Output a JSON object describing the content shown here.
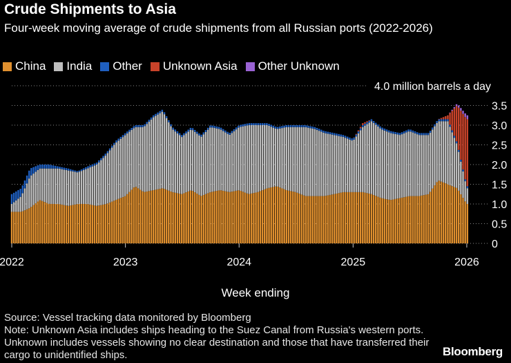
{
  "header": {
    "title": "Crude Shipments to Asia",
    "subtitle": "Four-week moving average of crude shipments from all Russian ports (2022-2026)"
  },
  "legend": [
    {
      "label": "China",
      "color": "#e0902f"
    },
    {
      "label": "India",
      "color": "#bdbdbd"
    },
    {
      "label": "Other",
      "color": "#1f5fbf"
    },
    {
      "label": "Unknown Asia",
      "color": "#c8432a"
    },
    {
      "label": "Other Unknown",
      "color": "#9a63d4"
    }
  ],
  "footer": {
    "source": "Source: Vessel tracking data monitored by Bloomberg",
    "note": "Note: Unknown Asia includes ships heading to the Suez Canal from Russia's western ports. Unknown includes vessels showing no clear destination and those that have transferred their cargo to unidentified ships.",
    "logo": "Bloomberg"
  },
  "chart_data": {
    "type": "bar",
    "stacked": true,
    "title": "Crude Shipments to Asia",
    "subtitle": "Four-week moving average of crude shipments from all Russian ports (2022-2026)",
    "xlabel": "Week ending",
    "ylabel": "",
    "y_unit_label": "4.0 million barrels a day",
    "ylim": [
      0,
      4.0
    ],
    "yticks": [
      "0",
      "0.5",
      "1.0",
      "1.5",
      "2.0",
      "2.5",
      "3.0",
      "3.5",
      "4.0"
    ],
    "xticks": [
      "2022",
      "2023",
      "2024",
      "2025",
      "2026"
    ],
    "xlim": [
      "2022-01-01",
      "2026-01-10"
    ],
    "grid": "horizontal dotted",
    "legend_position": "top-left",
    "series_order": [
      "China",
      "India",
      "Other",
      "Unknown Asia",
      "Other Unknown"
    ],
    "colors": {
      "China": "#e0902f",
      "India": "#bdbdbd",
      "Other": "#1f5fbf",
      "Unknown Asia": "#c8432a",
      "Other Unknown": "#9a63d4"
    },
    "approximate_points": {
      "x": [
        "2022-01-01",
        "2022-02-01",
        "2022-03-01",
        "2022-04-01",
        "2022-05-01",
        "2022-06-01",
        "2022-07-01",
        "2022-08-01",
        "2022-09-01",
        "2022-10-01",
        "2022-11-01",
        "2022-12-01",
        "2023-01-01",
        "2023-02-01",
        "2023-03-01",
        "2023-04-01",
        "2023-05-01",
        "2023-06-01",
        "2023-07-01",
        "2023-08-01",
        "2023-09-01",
        "2023-10-01",
        "2023-11-01",
        "2023-12-01",
        "2024-01-01",
        "2024-02-01",
        "2024-03-01",
        "2024-04-01",
        "2024-05-01",
        "2024-06-01",
        "2024-07-01",
        "2024-08-01",
        "2024-09-01",
        "2024-10-01",
        "2024-11-01",
        "2024-12-01",
        "2025-01-01",
        "2025-02-01",
        "2025-03-01",
        "2025-04-01",
        "2025-05-01",
        "2025-06-01",
        "2025-07-01",
        "2025-08-01",
        "2025-09-01",
        "2025-10-01",
        "2025-11-01",
        "2025-12-01",
        "2026-01-01"
      ],
      "series": [
        {
          "name": "China",
          "values": [
            0.8,
            0.8,
            0.9,
            1.1,
            1.0,
            1.0,
            0.95,
            1.0,
            1.0,
            0.95,
            1.0,
            1.1,
            1.2,
            1.45,
            1.3,
            1.35,
            1.4,
            1.3,
            1.25,
            1.35,
            1.2,
            1.3,
            1.35,
            1.3,
            1.35,
            1.25,
            1.3,
            1.4,
            1.45,
            1.35,
            1.3,
            1.2,
            1.2,
            1.2,
            1.25,
            1.3,
            1.3,
            1.3,
            1.25,
            1.15,
            1.1,
            1.15,
            1.2,
            1.2,
            1.25,
            1.6,
            1.5,
            1.4,
            1.0
          ]
        },
        {
          "name": "India",
          "values": [
            0.2,
            0.4,
            0.8,
            0.8,
            0.9,
            0.9,
            0.9,
            0.8,
            0.9,
            1.05,
            1.25,
            1.45,
            1.55,
            1.5,
            1.65,
            1.85,
            1.95,
            1.6,
            1.45,
            1.55,
            1.5,
            1.65,
            1.55,
            1.45,
            1.6,
            1.75,
            1.7,
            1.6,
            1.45,
            1.6,
            1.65,
            1.75,
            1.7,
            1.6,
            1.5,
            1.4,
            1.3,
            1.65,
            1.85,
            1.75,
            1.7,
            1.6,
            1.65,
            1.55,
            1.5,
            1.5,
            1.6,
            1.1,
            0.4
          ]
        },
        {
          "name": "Other",
          "values": [
            0.25,
            0.2,
            0.2,
            0.1,
            0.1,
            0.05,
            0.05,
            0.03,
            0.05,
            0.05,
            0.05,
            0.05,
            0.05,
            0.05,
            0.05,
            0.05,
            0.05,
            0.05,
            0.05,
            0.05,
            0.05,
            0.05,
            0.05,
            0.05,
            0.05,
            0.05,
            0.05,
            0.05,
            0.05,
            0.05,
            0.05,
            0.05,
            0.05,
            0.05,
            0.05,
            0.05,
            0.05,
            0.05,
            0.05,
            0.05,
            0.05,
            0.05,
            0.05,
            0.05,
            0.05,
            0.05,
            0.05,
            0.05,
            0.05
          ]
        },
        {
          "name": "Unknown Asia",
          "values": [
            0,
            0,
            0,
            0,
            0,
            0,
            0,
            0,
            0,
            0,
            0,
            0,
            0,
            0,
            0,
            0,
            0,
            0,
            0,
            0,
            0,
            0,
            0,
            0,
            0,
            0,
            0,
            0,
            0,
            0,
            0,
            0,
            0,
            0,
            0,
            0,
            0,
            0.05,
            0,
            0,
            0,
            0,
            0,
            0,
            0,
            0,
            0.1,
            0.95,
            1.7
          ]
        },
        {
          "name": "Other Unknown",
          "values": [
            0,
            0,
            0,
            0,
            0,
            0,
            0,
            0,
            0,
            0,
            0,
            0,
            0,
            0,
            0,
            0,
            0,
            0,
            0,
            0,
            0,
            0,
            0,
            0,
            0,
            0,
            0,
            0,
            0,
            0,
            0,
            0,
            0,
            0,
            0,
            0,
            0,
            0,
            0,
            0,
            0,
            0,
            0,
            0,
            0,
            0,
            0,
            0.05,
            0.1
          ]
        }
      ]
    }
  }
}
